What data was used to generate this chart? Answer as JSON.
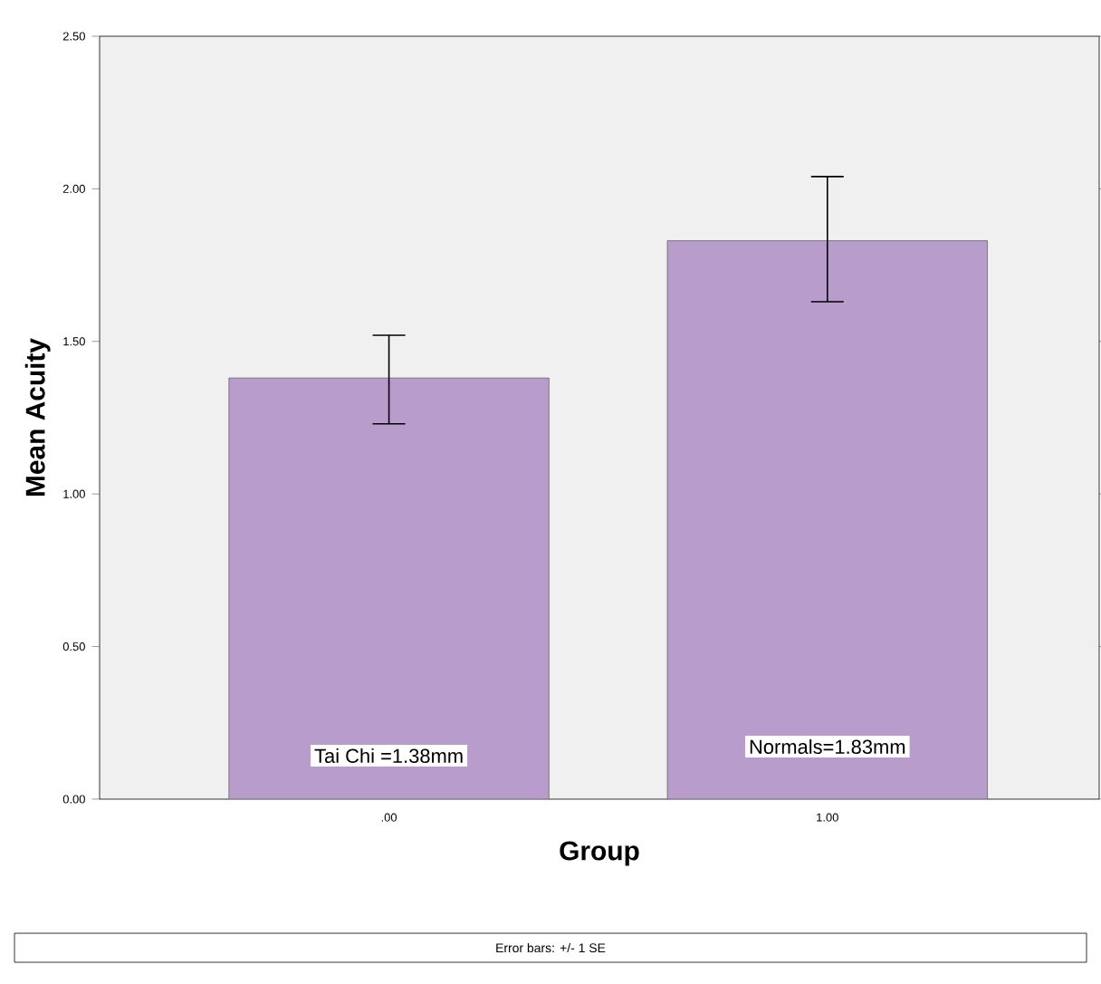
{
  "chart_data": {
    "type": "bar",
    "xlabel": "Group",
    "ylabel": "Mean Acuity",
    "categories": [
      ".00",
      "1.00"
    ],
    "values": [
      1.38,
      1.83
    ],
    "errors": [
      [
        1.23,
        1.52
      ],
      [
        1.63,
        2.04
      ]
    ],
    "color": "#b89ccb",
    "ylim": [
      0,
      2.5
    ],
    "yticks": [
      {
        "value": 0,
        "label": "0.00"
      },
      {
        "value": 0.5,
        "label": "0.50"
      },
      {
        "value": 1,
        "label": "1.00"
      },
      {
        "value": 1.5,
        "label": "1.50"
      },
      {
        "value": 2,
        "label": "2.00"
      },
      {
        "value": 2.5,
        "label": "2.50"
      }
    ],
    "grid": false,
    "annotations": [
      "Tai Chi =1.38mm",
      "Normals=1.83mm",
      "Error bars: +/- 1 SE"
    ]
  }
}
